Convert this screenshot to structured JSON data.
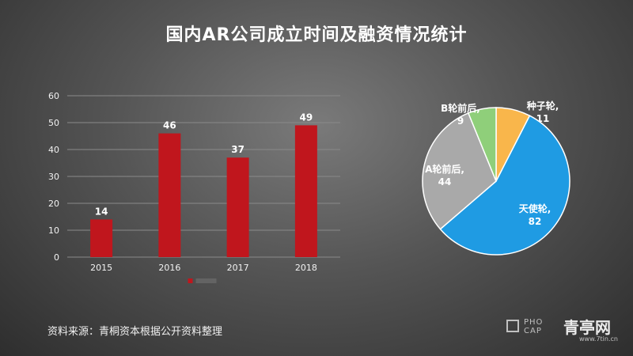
{
  "title": "国内AR公司成立时间及融资情况统计",
  "source": "资料来源：青桐资本根据公开资料整理",
  "logo": {
    "line1": "PHO",
    "line2": "CAP"
  },
  "watermark": {
    "brand": "青亭网",
    "url": "www.7tin.cn"
  },
  "chart_data": [
    {
      "type": "bar",
      "categories": [
        "2015",
        "2016",
        "2017",
        "2018"
      ],
      "series": [
        {
          "values": [
            14,
            46,
            37,
            49
          ],
          "color": "#c0161d"
        }
      ],
      "ylim": [
        0,
        60
      ],
      "yticks": [
        0,
        10,
        20,
        30,
        40,
        50,
        60
      ],
      "grid": true,
      "legend_position": "bottom"
    },
    {
      "type": "pie",
      "slices": [
        {
          "label": "种子轮,",
          "value": 11,
          "color": "#f9b64b",
          "text_color": "#ffffff"
        },
        {
          "label": "天使轮,",
          "value": 82,
          "color": "#1f9be3",
          "text_color": "#ffffff"
        },
        {
          "label": "A轮前后,",
          "value": 44,
          "color": "#a9a9a9",
          "text_color": "#ffffff"
        },
        {
          "label": "B轮前后,",
          "value": 9,
          "color": "#8fcf7a",
          "text_color": "#ffffff"
        }
      ]
    }
  ]
}
